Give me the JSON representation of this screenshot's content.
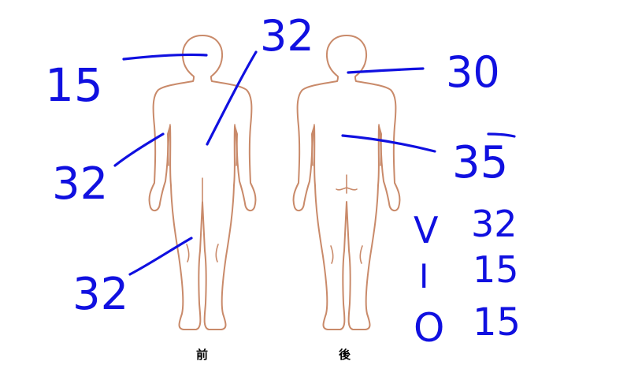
{
  "views": {
    "front_label": "前",
    "back_label": "後"
  },
  "annotations": {
    "front_head": "15",
    "front_trunk": "32",
    "front_arm": "32",
    "front_leg": "32",
    "back_head": "30",
    "back_trunk": "35"
  },
  "legend": [
    {
      "key": "V",
      "value": "32"
    },
    {
      "key": "I",
      "value": "15"
    },
    {
      "key": "O",
      "value": "15"
    }
  ],
  "colors": {
    "ink": "#1010e0",
    "body_outline": "#c98a6a"
  }
}
